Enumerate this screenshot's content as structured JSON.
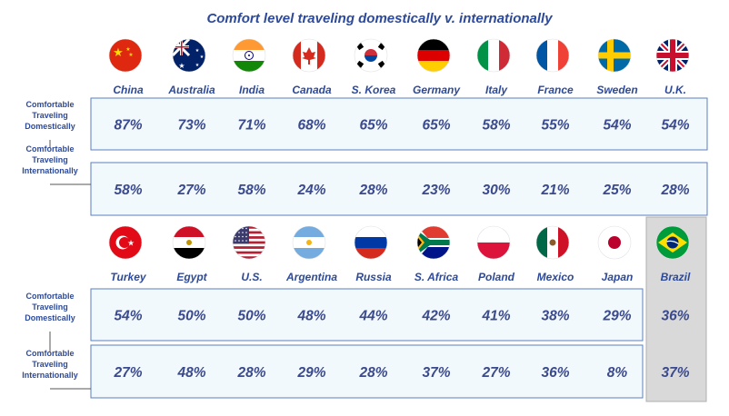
{
  "title": "Comfort level traveling domestically v. internationally",
  "row_labels": {
    "domestic": [
      "Comfortable",
      "Traveling",
      "Domestically"
    ],
    "international": [
      "Comfortable",
      "Traveling",
      "Internationally"
    ]
  },
  "colors": {
    "title": "#2d4a9a",
    "row_fill": "#f2f9fc",
    "row_border": "#5a7fbf",
    "highlight": "#d9d9d9"
  },
  "chart_data": {
    "type": "table",
    "title": "Comfort level traveling domestically v. internationally",
    "metrics": [
      "Comfortable Traveling Domestically",
      "Comfortable Traveling Internationally"
    ],
    "groups": [
      {
        "countries": [
          {
            "name": "China",
            "flag": "china-flag-icon",
            "domestic": "87%",
            "international": "58%"
          },
          {
            "name": "Australia",
            "flag": "australia-flag-icon",
            "domestic": "73%",
            "international": "27%"
          },
          {
            "name": "India",
            "flag": "india-flag-icon",
            "domestic": "71%",
            "international": "58%"
          },
          {
            "name": "Canada",
            "flag": "canada-flag-icon",
            "domestic": "68%",
            "international": "24%"
          },
          {
            "name": "S. Korea",
            "flag": "south-korea-flag-icon",
            "domestic": "65%",
            "international": "28%"
          },
          {
            "name": "Germany",
            "flag": "germany-flag-icon",
            "domestic": "65%",
            "international": "23%"
          },
          {
            "name": "Italy",
            "flag": "italy-flag-icon",
            "domestic": "58%",
            "international": "30%"
          },
          {
            "name": "France",
            "flag": "france-flag-icon",
            "domestic": "55%",
            "international": "21%"
          },
          {
            "name": "Sweden",
            "flag": "sweden-flag-icon",
            "domestic": "54%",
            "international": "25%"
          },
          {
            "name": "U.K.",
            "flag": "uk-flag-icon",
            "domestic": "54%",
            "international": "28%"
          }
        ]
      },
      {
        "countries": [
          {
            "name": "Turkey",
            "flag": "turkey-flag-icon",
            "domestic": "54%",
            "international": "27%"
          },
          {
            "name": "Egypt",
            "flag": "egypt-flag-icon",
            "domestic": "50%",
            "international": "48%"
          },
          {
            "name": "U.S.",
            "flag": "us-flag-icon",
            "domestic": "50%",
            "international": "28%"
          },
          {
            "name": "Argentina",
            "flag": "argentina-flag-icon",
            "domestic": "48%",
            "international": "29%"
          },
          {
            "name": "Russia",
            "flag": "russia-flag-icon",
            "domestic": "44%",
            "international": "28%"
          },
          {
            "name": "S. Africa",
            "flag": "south-africa-flag-icon",
            "domestic": "42%",
            "international": "37%"
          },
          {
            "name": "Poland",
            "flag": "poland-flag-icon",
            "domestic": "41%",
            "international": "27%"
          },
          {
            "name": "Mexico",
            "flag": "mexico-flag-icon",
            "domestic": "38%",
            "international": "36%"
          },
          {
            "name": "Japan",
            "flag": "japan-flag-icon",
            "domestic": "29%",
            "international": "8%"
          },
          {
            "name": "Brazil",
            "flag": "brazil-flag-icon",
            "domestic": "36%",
            "international": "37%",
            "highlighted": true
          }
        ]
      }
    ]
  }
}
